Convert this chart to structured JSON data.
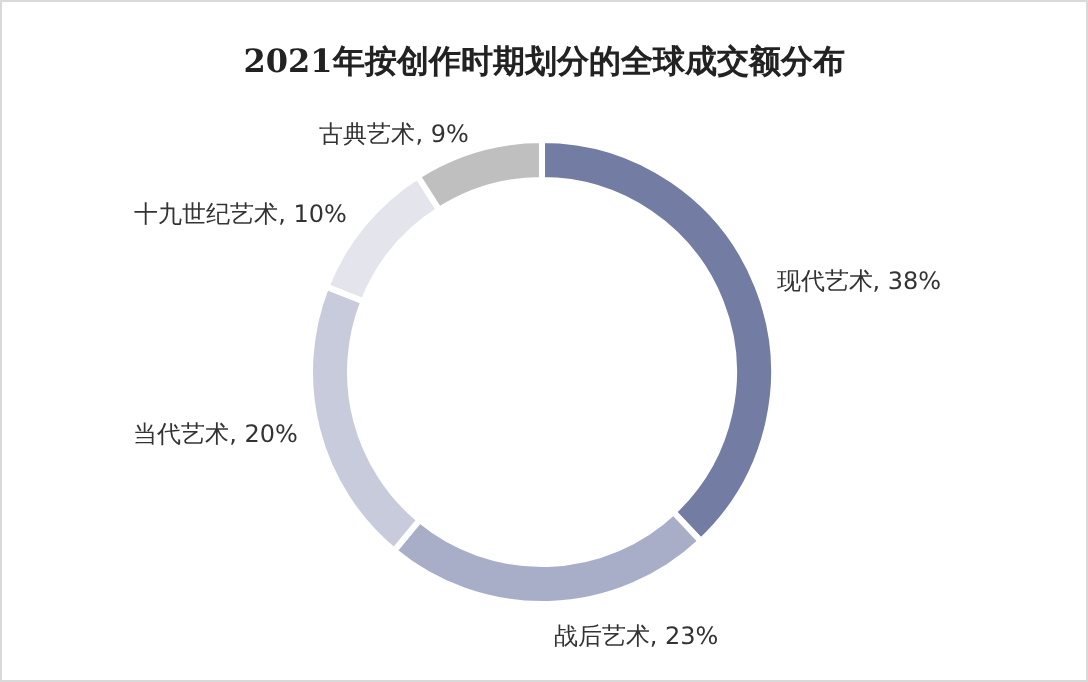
{
  "chart_data": {
    "type": "donut",
    "title": "2021年按创作时期划分的全球成交额分布",
    "categories": [
      "现代艺术",
      "战后艺术",
      "当代艺术",
      "十九世纪艺术",
      "古典艺术"
    ],
    "values": [
      38,
      23,
      20,
      10,
      9
    ],
    "value_labels": [
      "38%",
      "23%",
      "20%",
      "10%",
      "9%"
    ],
    "colors": [
      "#737ca3",
      "#a9aec8",
      "#c8cbdc",
      "#e4e5ec",
      "#bfbfbf"
    ]
  }
}
